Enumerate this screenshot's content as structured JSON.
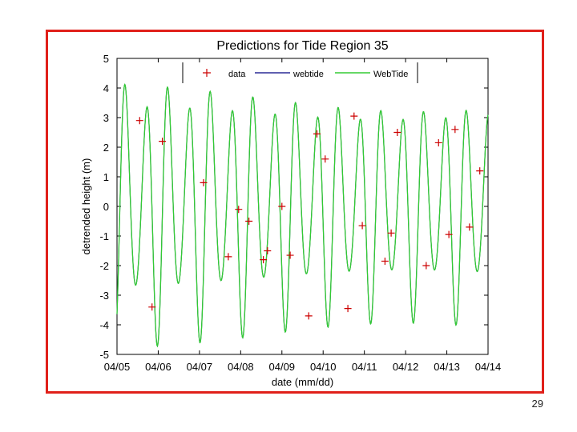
{
  "page_number": "29",
  "colors": {
    "frame": "#e0201a",
    "data": "#cc0000",
    "webtide": "#000080",
    "WebTide": "#33cc33",
    "axis": "#000000"
  },
  "chart_data": {
    "type": "line",
    "title": "Predictions for Tide Region 35",
    "xlabel": "date (mm/dd)",
    "ylabel": "detrended height (m)",
    "xlim": [
      0,
      9
    ],
    "ylim": [
      -5,
      5
    ],
    "x_tick_labels": [
      "04/05",
      "04/06",
      "04/07",
      "04/08",
      "04/09",
      "04/10",
      "04/11",
      "04/12",
      "04/13",
      "04/14"
    ],
    "y_ticks": [
      -5,
      -4,
      -3,
      -2,
      -1,
      0,
      1,
      2,
      3,
      4,
      5
    ],
    "legend_location": "top",
    "series": [
      {
        "name": "data",
        "marker": "+",
        "points": [
          [
            0.55,
            2.9
          ],
          [
            0.85,
            -3.4
          ],
          [
            1.1,
            2.2
          ],
          [
            2.1,
            0.8
          ],
          [
            2.7,
            -1.7
          ],
          [
            2.95,
            -0.1
          ],
          [
            3.2,
            -0.5
          ],
          [
            3.55,
            -1.8
          ],
          [
            3.65,
            -1.5
          ],
          [
            4.0,
            0.0
          ],
          [
            4.2,
            -1.65
          ],
          [
            4.65,
            -3.7
          ],
          [
            4.85,
            2.45
          ],
          [
            5.05,
            1.6
          ],
          [
            5.6,
            -3.45
          ],
          [
            5.75,
            3.05
          ],
          [
            5.95,
            -0.65
          ],
          [
            6.5,
            -1.85
          ],
          [
            6.65,
            -0.9
          ],
          [
            6.8,
            2.5
          ],
          [
            7.5,
            -2.0
          ],
          [
            7.8,
            2.15
          ],
          [
            8.05,
            -0.95
          ],
          [
            8.2,
            2.6
          ],
          [
            8.55,
            -0.7
          ],
          [
            8.8,
            1.2
          ]
        ]
      },
      {
        "name": "webtide",
        "kind": "tidal",
        "tidal": {
          "period_days": 0.5175,
          "phase_days": 0.2,
          "amp_base": 3.55,
          "amp_var": 0.35,
          "envelope_days": 14.0,
          "amp_secondary": 0.3,
          "period_secondary_days": 1.03,
          "samples": 900
        }
      },
      {
        "name": "WebTide",
        "kind": "tidal",
        "tidal": {
          "period_days": 0.5175,
          "phase_days": 0.2,
          "amp_base": 3.55,
          "amp_var": 0.35,
          "envelope_days": 14.0,
          "amp_secondary": 0.3,
          "period_secondary_days": 1.03,
          "samples": 900
        }
      }
    ]
  }
}
